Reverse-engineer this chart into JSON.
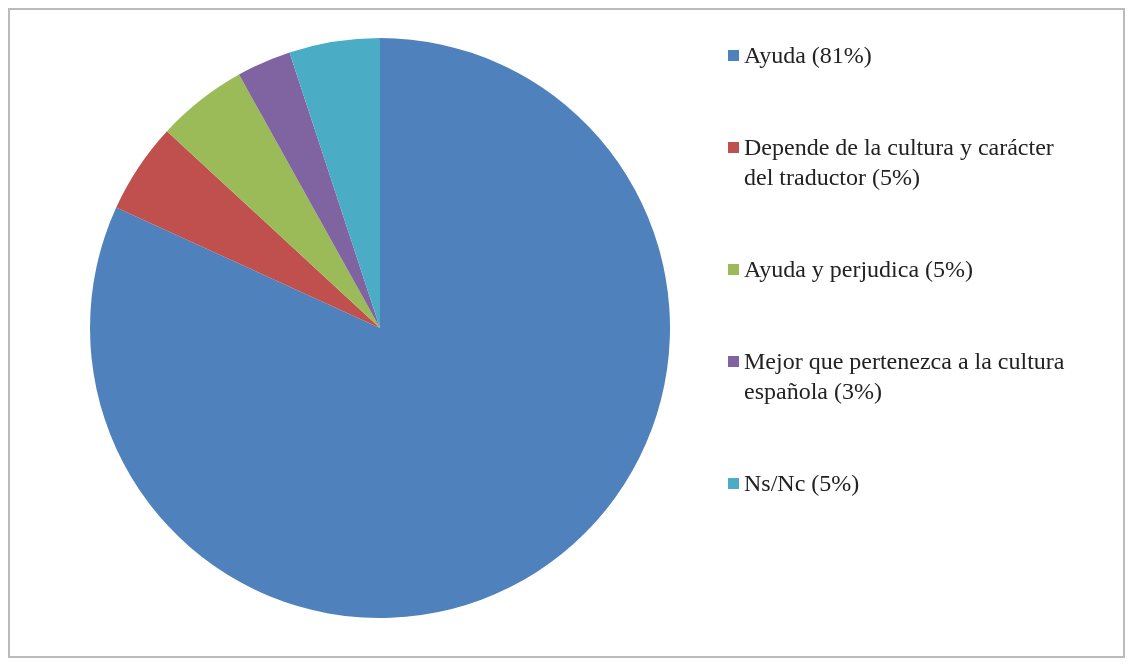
{
  "chart_data": {
    "type": "pie",
    "categories": [
      "Ayuda (81%)",
      "Depende de la cultura y carácter del traductor (5%)",
      "Ayuda y perjudica (5%)",
      "Mejor que pertenezca a la cultura española (3%)",
      "Ns/Nc (5%)"
    ],
    "values": [
      81,
      5,
      5,
      3,
      5
    ],
    "colors": [
      "#4f81bd",
      "#c0504d",
      "#9bbb59",
      "#8064a2",
      "#4bacc6"
    ],
    "legend": "right"
  }
}
